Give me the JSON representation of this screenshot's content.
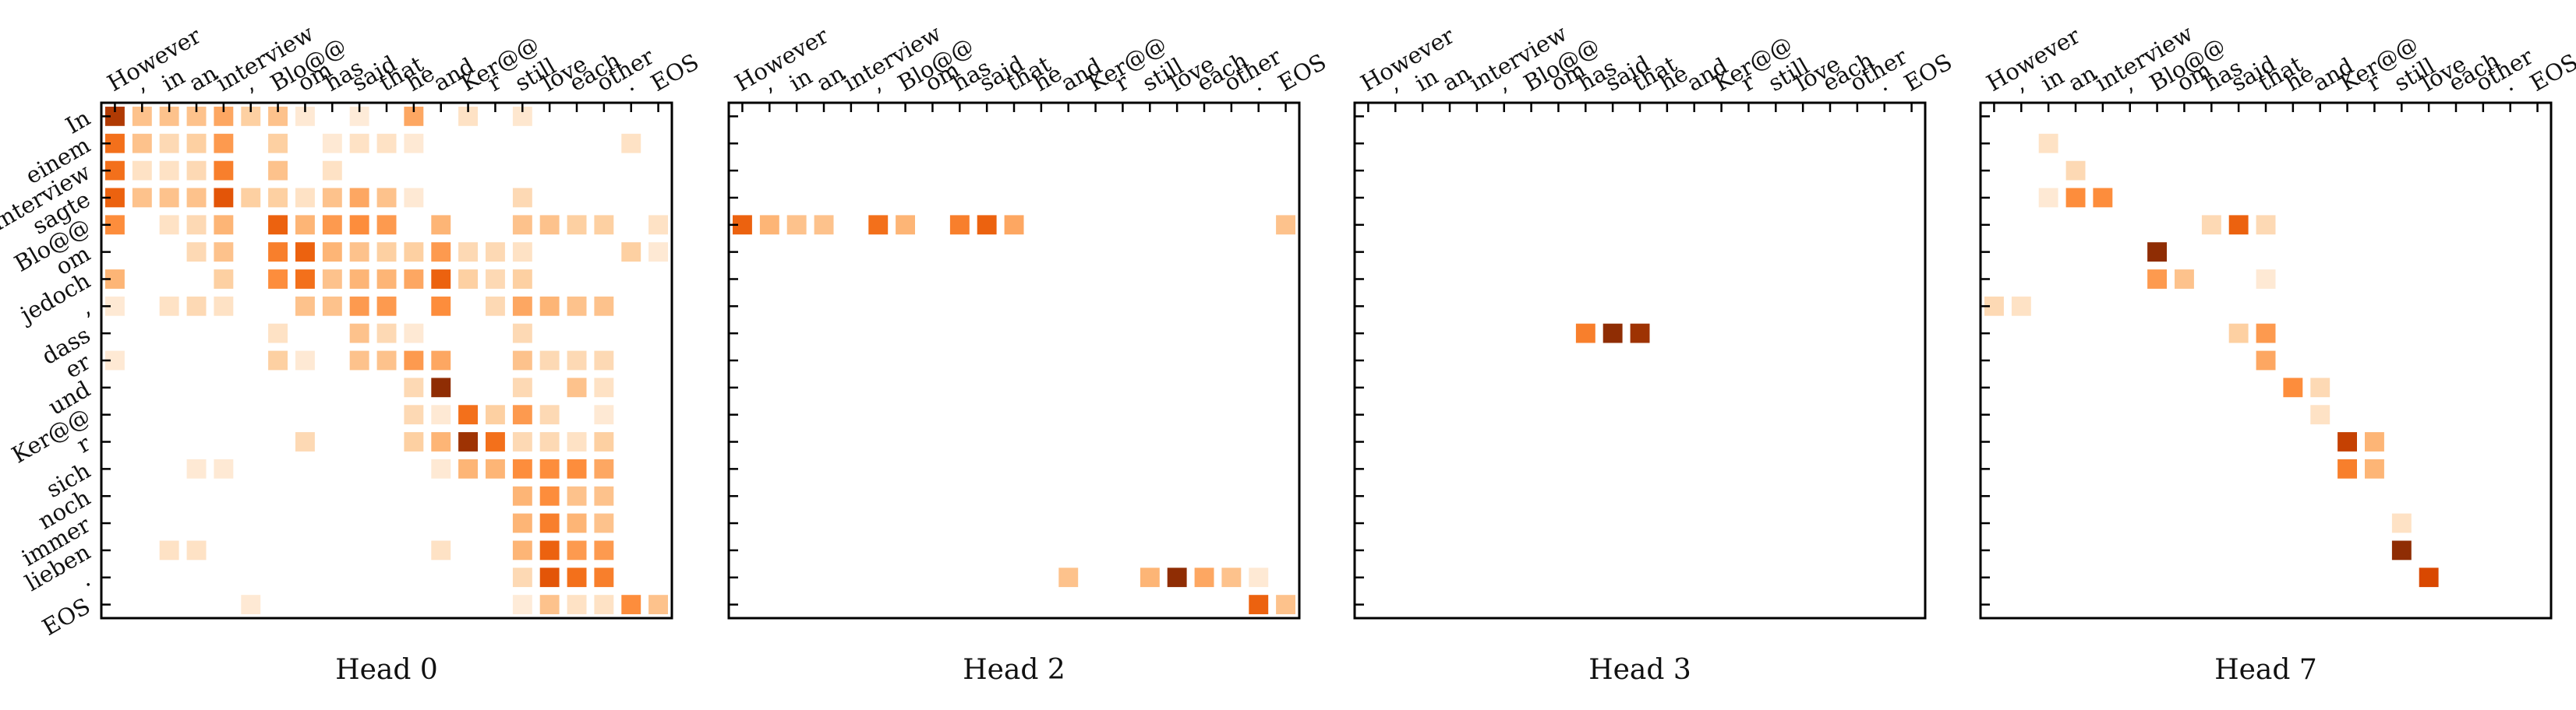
{
  "chart_data": {
    "type": "heatmap",
    "x_tokens": [
      "However",
      ",",
      "in",
      "an",
      "interview",
      ",",
      "Blo@@",
      "om",
      "has",
      "said",
      "that",
      "he",
      "and",
      "Ker@@",
      "r",
      "still",
      "love",
      "each",
      "other",
      ".",
      "EOS"
    ],
    "y_tokens": [
      "In",
      "einem",
      "Interview",
      "sagte",
      "Blo@@",
      "om",
      "jedoch",
      ",",
      "dass",
      "er",
      "und",
      "Ker@@",
      "r",
      "sich",
      "noch",
      "immer",
      "lieben",
      ".",
      "EOS"
    ],
    "value_range": [
      0,
      1
    ],
    "colormap": [
      "#fff5eb",
      "#fee6ce",
      "#fdd0a2",
      "#fdae6b",
      "#fd8d3c",
      "#f16913",
      "#d94801",
      "#a63603",
      "#7f2704"
    ],
    "panels": [
      {
        "title": "Head 0",
        "cells": [
          [
            0,
            0,
            0.85
          ],
          [
            0,
            1,
            0.3
          ],
          [
            0,
            2,
            0.3
          ],
          [
            0,
            3,
            0.3
          ],
          [
            0,
            4,
            0.4
          ],
          [
            0,
            5,
            0.25
          ],
          [
            0,
            6,
            0.3
          ],
          [
            0,
            7,
            0.1
          ],
          [
            0,
            9,
            0.08
          ],
          [
            0,
            11,
            0.4
          ],
          [
            0,
            13,
            0.15
          ],
          [
            0,
            15,
            0.12
          ],
          [
            1,
            0,
            0.6
          ],
          [
            1,
            1,
            0.3
          ],
          [
            1,
            2,
            0.2
          ],
          [
            1,
            3,
            0.25
          ],
          [
            1,
            4,
            0.45
          ],
          [
            1,
            6,
            0.25
          ],
          [
            1,
            8,
            0.1
          ],
          [
            1,
            9,
            0.15
          ],
          [
            1,
            10,
            0.15
          ],
          [
            1,
            11,
            0.1
          ],
          [
            1,
            19,
            0.15
          ],
          [
            2,
            0,
            0.6
          ],
          [
            2,
            1,
            0.15
          ],
          [
            2,
            2,
            0.15
          ],
          [
            2,
            3,
            0.2
          ],
          [
            2,
            4,
            0.55
          ],
          [
            2,
            6,
            0.3
          ],
          [
            2,
            8,
            0.15
          ],
          [
            3,
            0,
            0.65
          ],
          [
            3,
            1,
            0.3
          ],
          [
            3,
            2,
            0.3
          ],
          [
            3,
            3,
            0.3
          ],
          [
            3,
            4,
            0.7
          ],
          [
            3,
            5,
            0.25
          ],
          [
            3,
            6,
            0.25
          ],
          [
            3,
            7,
            0.15
          ],
          [
            3,
            8,
            0.3
          ],
          [
            3,
            9,
            0.4
          ],
          [
            3,
            10,
            0.3
          ],
          [
            3,
            11,
            0.1
          ],
          [
            3,
            15,
            0.2
          ],
          [
            4,
            0,
            0.5
          ],
          [
            4,
            2,
            0.15
          ],
          [
            4,
            3,
            0.2
          ],
          [
            4,
            4,
            0.35
          ],
          [
            4,
            6,
            0.65
          ],
          [
            4,
            7,
            0.35
          ],
          [
            4,
            8,
            0.45
          ],
          [
            4,
            9,
            0.5
          ],
          [
            4,
            10,
            0.45
          ],
          [
            4,
            12,
            0.35
          ],
          [
            4,
            15,
            0.3
          ],
          [
            4,
            16,
            0.3
          ],
          [
            4,
            17,
            0.25
          ],
          [
            4,
            18,
            0.25
          ],
          [
            4,
            20,
            0.15
          ],
          [
            5,
            3,
            0.2
          ],
          [
            5,
            4,
            0.3
          ],
          [
            5,
            6,
            0.55
          ],
          [
            5,
            7,
            0.65
          ],
          [
            5,
            8,
            0.35
          ],
          [
            5,
            9,
            0.3
          ],
          [
            5,
            10,
            0.25
          ],
          [
            5,
            11,
            0.25
          ],
          [
            5,
            12,
            0.45
          ],
          [
            5,
            13,
            0.2
          ],
          [
            5,
            14,
            0.2
          ],
          [
            5,
            15,
            0.15
          ],
          [
            5,
            19,
            0.25
          ],
          [
            5,
            20,
            0.1
          ],
          [
            6,
            0,
            0.35
          ],
          [
            6,
            4,
            0.25
          ],
          [
            6,
            6,
            0.5
          ],
          [
            6,
            7,
            0.6
          ],
          [
            6,
            8,
            0.3
          ],
          [
            6,
            9,
            0.35
          ],
          [
            6,
            10,
            0.35
          ],
          [
            6,
            11,
            0.4
          ],
          [
            6,
            12,
            0.65
          ],
          [
            6,
            13,
            0.25
          ],
          [
            6,
            14,
            0.2
          ],
          [
            6,
            15,
            0.25
          ],
          [
            7,
            0,
            0.1
          ],
          [
            7,
            2,
            0.15
          ],
          [
            7,
            3,
            0.2
          ],
          [
            7,
            4,
            0.15
          ],
          [
            7,
            7,
            0.3
          ],
          [
            7,
            8,
            0.3
          ],
          [
            7,
            9,
            0.45
          ],
          [
            7,
            10,
            0.45
          ],
          [
            7,
            12,
            0.5
          ],
          [
            7,
            14,
            0.2
          ],
          [
            7,
            15,
            0.4
          ],
          [
            7,
            16,
            0.35
          ],
          [
            7,
            17,
            0.3
          ],
          [
            7,
            18,
            0.3
          ],
          [
            8,
            6,
            0.15
          ],
          [
            8,
            9,
            0.3
          ],
          [
            8,
            10,
            0.2
          ],
          [
            8,
            11,
            0.1
          ],
          [
            8,
            15,
            0.2
          ],
          [
            9,
            0,
            0.1
          ],
          [
            9,
            6,
            0.25
          ],
          [
            9,
            7,
            0.1
          ],
          [
            9,
            9,
            0.3
          ],
          [
            9,
            10,
            0.3
          ],
          [
            9,
            11,
            0.45
          ],
          [
            9,
            12,
            0.4
          ],
          [
            9,
            15,
            0.3
          ],
          [
            9,
            16,
            0.2
          ],
          [
            9,
            17,
            0.2
          ],
          [
            9,
            18,
            0.2
          ],
          [
            10,
            11,
            0.2
          ],
          [
            10,
            12,
            0.95
          ],
          [
            10,
            15,
            0.2
          ],
          [
            10,
            17,
            0.3
          ],
          [
            10,
            18,
            0.15
          ],
          [
            11,
            11,
            0.2
          ],
          [
            11,
            12,
            0.1
          ],
          [
            11,
            13,
            0.6
          ],
          [
            11,
            14,
            0.25
          ],
          [
            11,
            15,
            0.45
          ],
          [
            11,
            16,
            0.2
          ],
          [
            11,
            18,
            0.1
          ],
          [
            12,
            7,
            0.2
          ],
          [
            12,
            11,
            0.25
          ],
          [
            12,
            12,
            0.35
          ],
          [
            12,
            13,
            0.9
          ],
          [
            12,
            14,
            0.6
          ],
          [
            12,
            15,
            0.2
          ],
          [
            12,
            16,
            0.2
          ],
          [
            12,
            17,
            0.15
          ],
          [
            12,
            18,
            0.25
          ],
          [
            13,
            3,
            0.1
          ],
          [
            13,
            4,
            0.1
          ],
          [
            13,
            12,
            0.1
          ],
          [
            13,
            13,
            0.35
          ],
          [
            13,
            14,
            0.35
          ],
          [
            13,
            15,
            0.5
          ],
          [
            13,
            16,
            0.5
          ],
          [
            13,
            17,
            0.5
          ],
          [
            13,
            18,
            0.4
          ],
          [
            14,
            15,
            0.35
          ],
          [
            14,
            16,
            0.5
          ],
          [
            14,
            17,
            0.3
          ],
          [
            14,
            18,
            0.3
          ],
          [
            15,
            15,
            0.35
          ],
          [
            15,
            16,
            0.55
          ],
          [
            15,
            17,
            0.35
          ],
          [
            15,
            18,
            0.3
          ],
          [
            16,
            2,
            0.15
          ],
          [
            16,
            3,
            0.15
          ],
          [
            16,
            12,
            0.15
          ],
          [
            16,
            15,
            0.35
          ],
          [
            16,
            16,
            0.65
          ],
          [
            16,
            17,
            0.45
          ],
          [
            16,
            18,
            0.45
          ],
          [
            17,
            15,
            0.2
          ],
          [
            17,
            16,
            0.7
          ],
          [
            17,
            17,
            0.6
          ],
          [
            17,
            18,
            0.55
          ],
          [
            18,
            5,
            0.1
          ],
          [
            18,
            15,
            0.08
          ],
          [
            18,
            16,
            0.3
          ],
          [
            18,
            17,
            0.15
          ],
          [
            18,
            18,
            0.15
          ],
          [
            18,
            19,
            0.5
          ],
          [
            18,
            20,
            0.3
          ]
        ]
      },
      {
        "title": "Head 2",
        "cells": [
          [
            4,
            0,
            0.65
          ],
          [
            4,
            1,
            0.35
          ],
          [
            4,
            2,
            0.3
          ],
          [
            4,
            3,
            0.3
          ],
          [
            4,
            5,
            0.6
          ],
          [
            4,
            6,
            0.35
          ],
          [
            4,
            8,
            0.55
          ],
          [
            4,
            9,
            0.65
          ],
          [
            4,
            10,
            0.4
          ],
          [
            4,
            20,
            0.3
          ],
          [
            17,
            12,
            0.3
          ],
          [
            17,
            15,
            0.35
          ],
          [
            17,
            16,
            0.95
          ],
          [
            17,
            17,
            0.4
          ],
          [
            17,
            18,
            0.3
          ],
          [
            17,
            19,
            0.1
          ],
          [
            18,
            19,
            0.65
          ],
          [
            18,
            20,
            0.3
          ]
        ]
      },
      {
        "title": "Head 3",
        "cells": [
          [
            8,
            8,
            0.55
          ],
          [
            8,
            9,
            0.95
          ],
          [
            8,
            10,
            0.9
          ]
        ]
      },
      {
        "title": "Head 7",
        "cells": [
          [
            1,
            2,
            0.15
          ],
          [
            2,
            3,
            0.2
          ],
          [
            3,
            2,
            0.1
          ],
          [
            3,
            3,
            0.5
          ],
          [
            3,
            4,
            0.5
          ],
          [
            4,
            8,
            0.2
          ],
          [
            4,
            9,
            0.65
          ],
          [
            4,
            10,
            0.2
          ],
          [
            5,
            6,
            0.95
          ],
          [
            6,
            6,
            0.45
          ],
          [
            6,
            7,
            0.3
          ],
          [
            6,
            10,
            0.1
          ],
          [
            7,
            0,
            0.2
          ],
          [
            7,
            1,
            0.15
          ],
          [
            8,
            9,
            0.25
          ],
          [
            8,
            10,
            0.45
          ],
          [
            9,
            10,
            0.4
          ],
          [
            10,
            11,
            0.5
          ],
          [
            10,
            12,
            0.2
          ],
          [
            11,
            12,
            0.15
          ],
          [
            12,
            13,
            0.8
          ],
          [
            12,
            14,
            0.35
          ],
          [
            13,
            13,
            0.55
          ],
          [
            13,
            14,
            0.35
          ],
          [
            15,
            15,
            0.15
          ],
          [
            16,
            15,
            0.95
          ],
          [
            17,
            16,
            0.75
          ]
        ]
      }
    ]
  }
}
